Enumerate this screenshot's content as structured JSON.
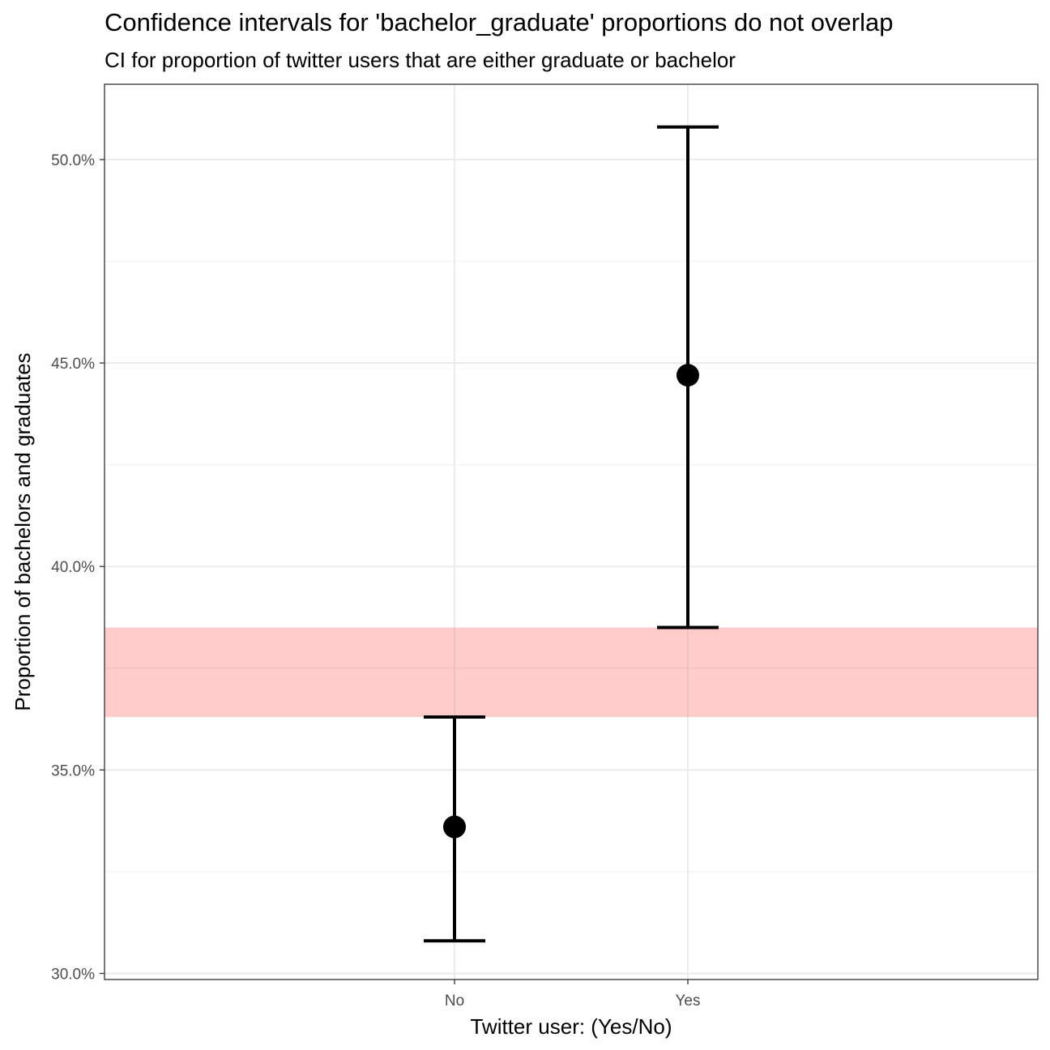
{
  "title": "Confidence intervals for 'bachelor_graduate' proportions do not overlap",
  "subtitle": "CI for proportion of twitter users that are either graduate or bachelor",
  "chart_data": {
    "type": "errorbar",
    "title": "Confidence intervals for 'bachelor_graduate' proportions do not overlap",
    "subtitle": "CI for proportion of twitter users that are either graduate or bachelor",
    "xlabel": "Twitter user: (Yes/No)",
    "ylabel": "Proportion of bachelors and graduates",
    "categories": [
      "No",
      "Yes"
    ],
    "estimates": [
      33.6,
      44.7
    ],
    "lower": [
      30.8,
      38.5
    ],
    "upper": [
      36.3,
      50.8
    ],
    "ylim": [
      29.85,
      51.85
    ],
    "yticks": [
      30,
      35,
      40,
      45,
      50
    ],
    "ytick_labels": [
      "30.0%",
      "35.0%",
      "40.0%",
      "45.0%",
      "50.0%"
    ],
    "gap_band": {
      "from": 36.3,
      "to": 38.5,
      "color": "#ffcccc"
    },
    "grid": true,
    "colors": {
      "marks": "#000000",
      "grid_major": "#ebebeb",
      "grid_minor": "#f2f2f2",
      "panel_border": "#333333"
    }
  }
}
